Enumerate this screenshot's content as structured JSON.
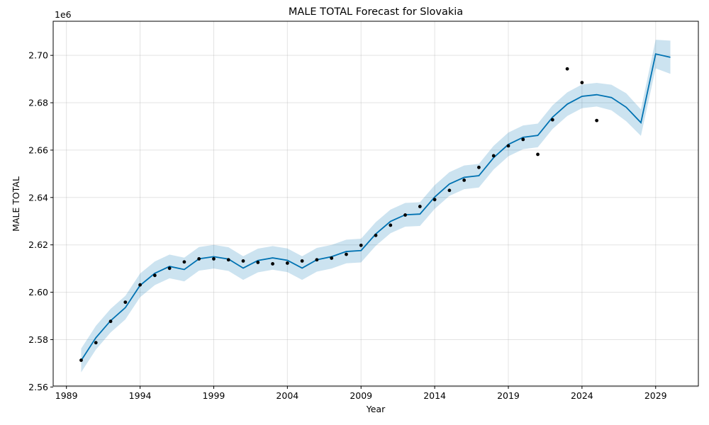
{
  "chart_data": {
    "type": "line",
    "title": "MALE TOTAL Forecast for Slovakia",
    "xlabel": "Year",
    "ylabel": "MALE TOTAL",
    "y_offset_label": "1e6",
    "x_tick_labels": [
      "1989",
      "1994",
      "1999",
      "2004",
      "2009",
      "2014",
      "2019",
      "2024",
      "2029"
    ],
    "y_tick_labels": [
      "2.56",
      "2.58",
      "2.60",
      "2.62",
      "2.64",
      "2.66",
      "2.68",
      "2.70"
    ],
    "xlim": [
      1988.1,
      2031.9
    ],
    "ylim": [
      2.5604,
      2.7144
    ],
    "grid": true,
    "colors": {
      "forecast": "#0072b2",
      "interval": "#0072b2",
      "observed": "#000000"
    },
    "observed": {
      "x": [
        1990,
        1991,
        1992,
        1993,
        1994,
        1995,
        1996,
        1997,
        1998,
        1999,
        2000,
        2001,
        2002,
        2003,
        2004,
        2005,
        2006,
        2007,
        2008,
        2009,
        2010,
        2011,
        2012,
        2013,
        2014,
        2015,
        2016,
        2017,
        2018,
        2019,
        2020,
        2021,
        2022,
        2023,
        2024,
        2025
      ],
      "y": [
        2.5713,
        2.5787,
        2.5877,
        2.5958,
        2.6031,
        2.6071,
        2.6101,
        2.6128,
        2.6141,
        2.6141,
        2.6137,
        2.6132,
        2.6126,
        2.612,
        2.6123,
        2.6132,
        2.6137,
        2.6144,
        2.616,
        2.6198,
        2.624,
        2.6283,
        2.6326,
        2.6362,
        2.6391,
        2.643,
        2.6473,
        2.6527,
        2.6576,
        2.6618,
        2.6645,
        2.6582,
        2.6728,
        2.6943,
        2.6885,
        2.6725
      ]
    },
    "forecast": {
      "x": [
        1990,
        1991,
        1992,
        1993,
        1994,
        1995,
        1996,
        1997,
        1998,
        1999,
        2000,
        2001,
        2002,
        2003,
        2004,
        2005,
        2006,
        2007,
        2008,
        2009,
        2010,
        2011,
        2012,
        2013,
        2014,
        2015,
        2016,
        2017,
        2018,
        2019,
        2020,
        2021,
        2022,
        2023,
        2024,
        2025,
        2026,
        2027,
        2028,
        2029,
        2030
      ],
      "yhat": [
        2.5712,
        2.5808,
        2.588,
        2.5935,
        2.6029,
        2.608,
        2.6109,
        2.6096,
        2.6141,
        2.615,
        2.614,
        2.6102,
        2.6134,
        2.6145,
        2.6135,
        2.6102,
        2.6137,
        2.615,
        2.6172,
        2.6176,
        2.6246,
        2.6299,
        2.6327,
        2.633,
        2.6402,
        2.6457,
        2.6485,
        2.6492,
        2.6568,
        2.6624,
        2.6654,
        2.6662,
        2.6739,
        2.6794,
        2.6827,
        2.6834,
        2.6822,
        2.6781,
        2.6716,
        2.7006,
        2.6992
      ],
      "lower": [
        2.5662,
        2.5758,
        2.583,
        2.5885,
        2.5979,
        2.603,
        2.6059,
        2.6046,
        2.6091,
        2.61,
        2.609,
        2.6052,
        2.6084,
        2.6095,
        2.6085,
        2.6052,
        2.6087,
        2.61,
        2.6122,
        2.6126,
        2.6196,
        2.6249,
        2.6277,
        2.628,
        2.6352,
        2.6407,
        2.6435,
        2.6442,
        2.6518,
        2.6574,
        2.6604,
        2.6612,
        2.6689,
        2.6744,
        2.6777,
        2.6784,
        2.6768,
        2.6722,
        2.666,
        2.6945,
        2.6922
      ],
      "upper": [
        2.5762,
        2.5858,
        2.593,
        2.5985,
        2.6079,
        2.613,
        2.6159,
        2.6146,
        2.6191,
        2.62,
        2.619,
        2.6152,
        2.6184,
        2.6195,
        2.6185,
        2.6152,
        2.6187,
        2.62,
        2.6222,
        2.6226,
        2.6296,
        2.6349,
        2.6377,
        2.638,
        2.6452,
        2.6507,
        2.6535,
        2.6542,
        2.6618,
        2.6674,
        2.6704,
        2.6712,
        2.6789,
        2.6844,
        2.6877,
        2.6884,
        2.6876,
        2.684,
        2.6772,
        2.7066,
        2.7062
      ]
    }
  }
}
